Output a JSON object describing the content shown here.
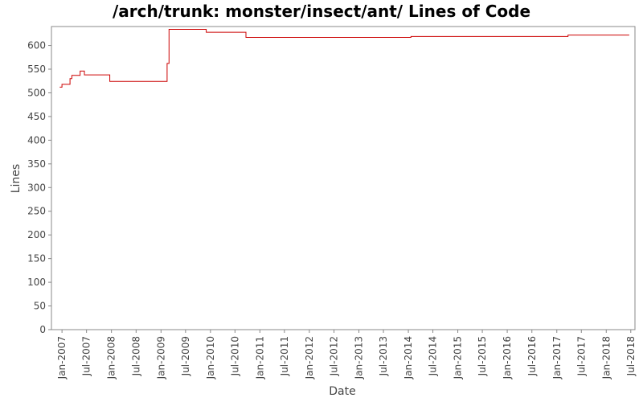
{
  "chart_data": {
    "type": "line",
    "title": "/arch/trunk: monster/insect/ant/ Lines of Code",
    "xlabel": "Date",
    "ylabel": "Lines",
    "ylim": [
      0,
      640
    ],
    "y_ticks": [
      0,
      50,
      100,
      150,
      200,
      250,
      300,
      350,
      400,
      450,
      500,
      550,
      600
    ],
    "x_ticks": [
      "Jan-2007",
      "Jul-2007",
      "Jan-2008",
      "Jul-2008",
      "Jan-2009",
      "Jul-2009",
      "Jan-2010",
      "Jul-2010",
      "Jan-2011",
      "Jul-2011",
      "Jan-2012",
      "Jul-2012",
      "Jan-2013",
      "Jul-2013",
      "Jan-2014",
      "Jul-2014",
      "Jan-2015",
      "Jul-2015",
      "Jan-2016",
      "Jul-2016",
      "Jan-2017",
      "Jul-2017",
      "Jan-2018",
      "Jul-2018"
    ],
    "xlim": [
      "2006-10-15",
      "2018-08-01"
    ],
    "grid": false,
    "step": true,
    "series": [
      {
        "color": "#cc0000",
        "x": [
          "2006-12-15",
          "2007-01-01",
          "2007-02-15",
          "2007-03-01",
          "2007-03-15",
          "2007-05-15",
          "2007-06-15",
          "2007-12-20",
          "2008-12-20",
          "2009-02-15",
          "2009-03-01",
          "2009-12-01",
          "2010-09-20",
          "2014-01-20",
          "2017-03-25",
          "2018-06-20"
        ],
        "values": [
          512,
          518,
          518,
          530,
          537,
          546,
          538,
          524,
          524,
          562,
          634,
          628,
          617,
          619,
          622,
          622
        ]
      }
    ]
  }
}
